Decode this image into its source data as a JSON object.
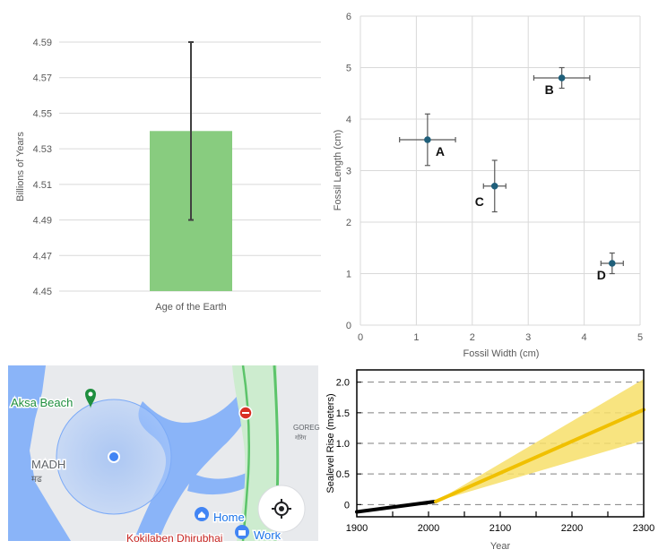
{
  "chart_data": [
    {
      "type": "bar",
      "categories": [
        "Age of the Earth"
      ],
      "values": [
        4.54
      ],
      "error": [
        0.05
      ],
      "ylabel": "Billions of Years",
      "ylim": [
        4.45,
        4.59
      ],
      "yticks": [
        "4.45",
        "4.47",
        "4.49",
        "4.51",
        "4.53",
        "4.55",
        "4.57",
        "4.59"
      ],
      "grid": true,
      "color": "#88cc7f"
    },
    {
      "type": "scatter",
      "xlabel": "Fossil Width (cm)",
      "ylabel": "Fossil Length (cm)",
      "xlim": [
        0,
        5
      ],
      "ylim": [
        0,
        6
      ],
      "xticks": [
        "0",
        "1",
        "2",
        "3",
        "4",
        "5"
      ],
      "yticks": [
        "0",
        "1",
        "2",
        "3",
        "4",
        "5",
        "6"
      ],
      "grid": true,
      "color": "#1f5f7a",
      "points": [
        {
          "label": "A",
          "x": 1.2,
          "y": 3.6,
          "xerr": 0.5,
          "yerr": 0.5
        },
        {
          "label": "B",
          "x": 3.6,
          "y": 4.8,
          "xerr": 0.5,
          "yerr": 0.2
        },
        {
          "label": "C",
          "x": 2.4,
          "y": 2.7,
          "xerr": 0.2,
          "yerr": 0.5
        },
        {
          "label": "D",
          "x": 4.5,
          "y": 1.2,
          "xerr": 0.2,
          "yerr": 0.2
        }
      ]
    },
    {
      "type": "line",
      "xlabel": "Year",
      "ylabel": "Sealevel Rise (meters)",
      "xlim": [
        1900,
        2300
      ],
      "ylim": [
        -0.2,
        2.2
      ],
      "xticks": [
        "1900",
        "2000",
        "2100",
        "2200",
        "2300"
      ],
      "yticks": [
        "0",
        "0.5",
        "1.0",
        "1.5",
        "2.0"
      ],
      "grid": "dashed horizontal",
      "series": [
        {
          "x": [
            1900,
            2010
          ],
          "values": [
            -0.12,
            0.05
          ],
          "color": "#000000"
        },
        {
          "x": [
            2010,
            2300
          ],
          "values": [
            0.05,
            1.55
          ],
          "color": "#f0c000"
        }
      ],
      "band": {
        "x": [
          2010,
          2300
        ],
        "lower": [
          0.05,
          1.05
        ],
        "upper": [
          0.05,
          2.05
        ],
        "color": "#f7df6a"
      }
    }
  ],
  "map": {
    "labels": {
      "aksa_beach": "Aksa Beach",
      "madh": "MADH",
      "madh_local": "मढ",
      "goregaon": "GOREG",
      "goregaon_local": "गोरेग",
      "home": "Home",
      "work": "Work",
      "kokilaben": "Kokilaben Dhirubhai"
    },
    "colors": {
      "water": "#8ab4f8",
      "land": "#e8eaed",
      "park": "#cdeccf",
      "road_green": "#5cc46a",
      "accuracy": "#aecbfa",
      "location_dot": "#4285f4",
      "place_pin": "#1e8e3e",
      "blocked": "#d93025"
    },
    "icons": [
      "beach-pin-icon",
      "blocked-road-icon",
      "location-dot-icon",
      "home-pin-icon",
      "work-pin-icon",
      "my-location-icon"
    ]
  }
}
